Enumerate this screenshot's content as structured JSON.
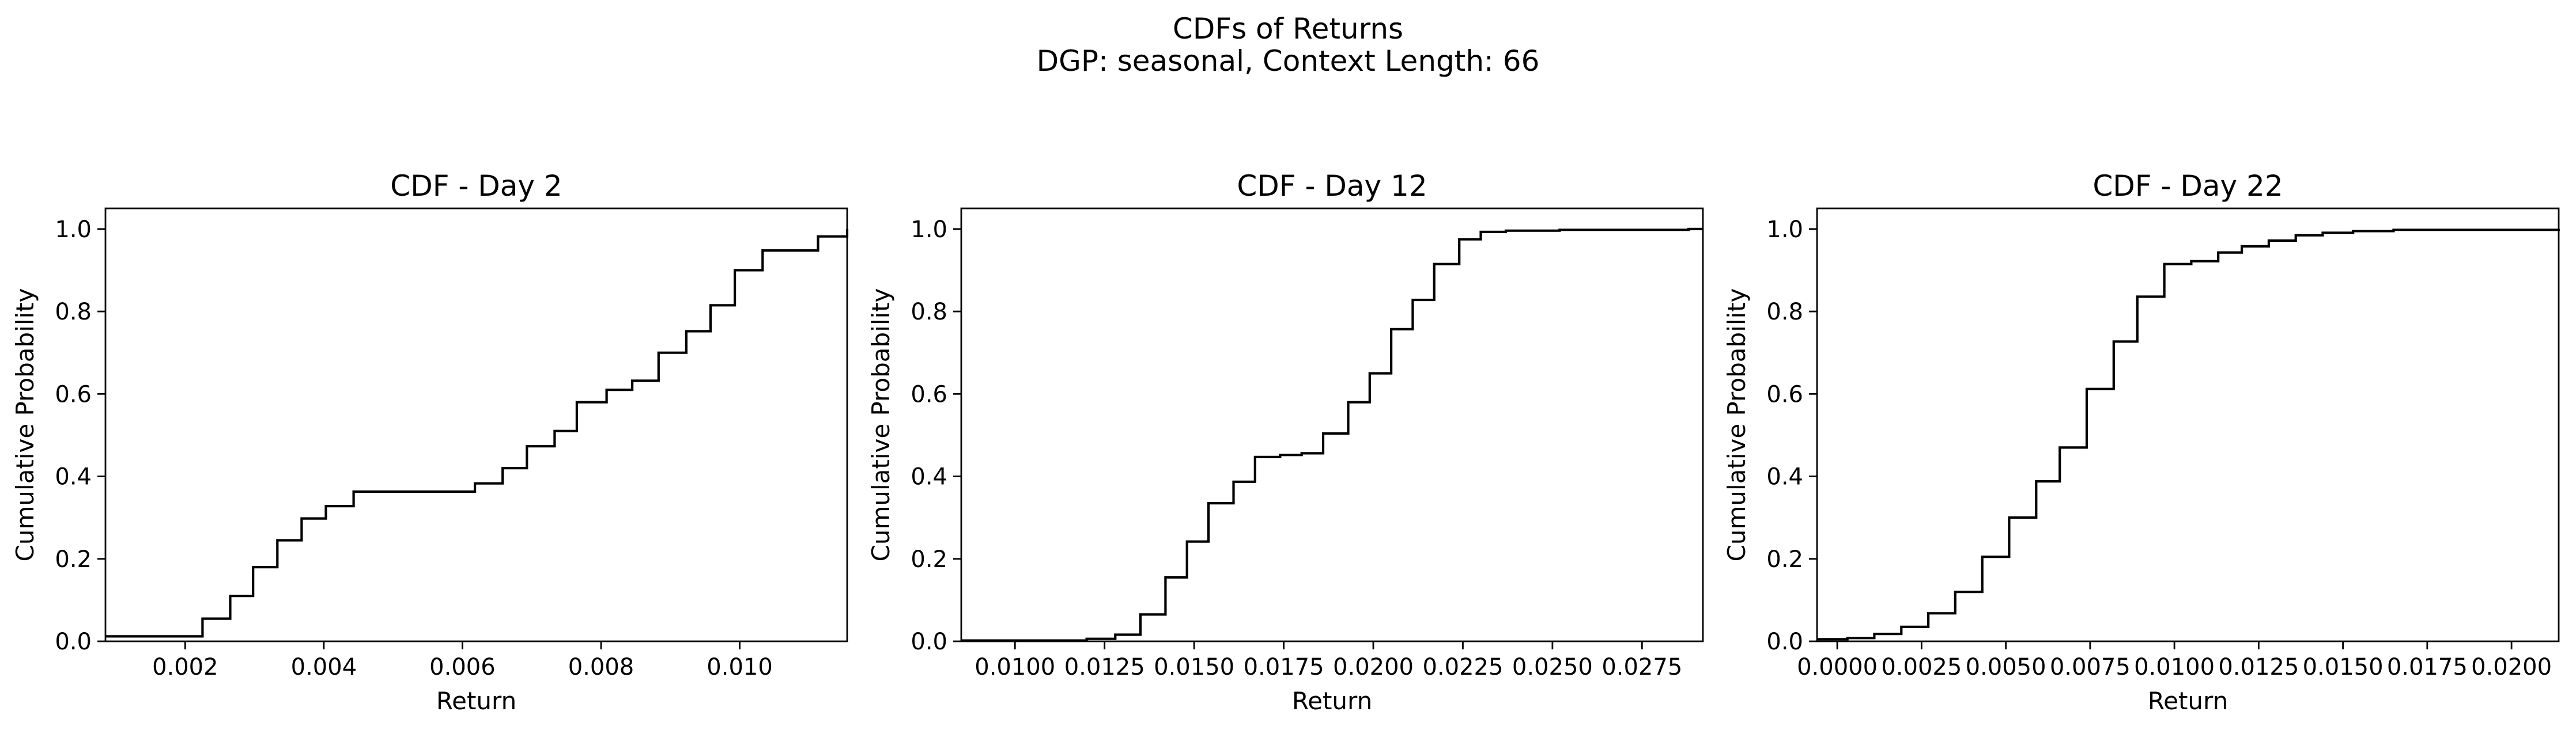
{
  "figure": {
    "title_line1": "CDFs of Returns",
    "title_line2": "DGP: seasonal, Context Length: 66"
  },
  "chart_data": [
    {
      "type": "line",
      "step": true,
      "title": "CDF - Day 2",
      "xlabel": "Return",
      "ylabel": "Cumulative Probability",
      "xlim": [
        0.00085,
        0.01155
      ],
      "ylim": [
        0.0,
        1.05
      ],
      "xticks": [
        0.002,
        0.004,
        0.006,
        0.008,
        0.01
      ],
      "xtick_labels": [
        "0.002",
        "0.004",
        "0.006",
        "0.008",
        "0.010"
      ],
      "yticks": [
        0.0,
        0.2,
        0.4,
        0.6,
        0.8,
        1.0
      ],
      "ytick_labels": [
        "0.0",
        "0.2",
        "0.4",
        "0.6",
        "0.8",
        "1.0"
      ],
      "grid": false,
      "color": "#000000",
      "x": [
        0.00085,
        0.00225,
        0.00265,
        0.00298,
        0.00333,
        0.00368,
        0.00403,
        0.00443,
        0.00618,
        0.00658,
        0.00693,
        0.00733,
        0.00765,
        0.00808,
        0.00845,
        0.00883,
        0.00923,
        0.00958,
        0.00993,
        0.01033,
        0.01113,
        0.01155
      ],
      "y": [
        0.012,
        0.055,
        0.11,
        0.18,
        0.245,
        0.298,
        0.328,
        0.363,
        0.383,
        0.42,
        0.473,
        0.51,
        0.58,
        0.61,
        0.632,
        0.7,
        0.752,
        0.815,
        0.9,
        0.948,
        0.982,
        1.0
      ]
    },
    {
      "type": "line",
      "step": true,
      "title": "CDF - Day 12",
      "xlabel": "Return",
      "ylabel": "Cumulative Probability",
      "xlim": [
        0.0085,
        0.0292
      ],
      "ylim": [
        0.0,
        1.05
      ],
      "xticks": [
        0.01,
        0.0125,
        0.015,
        0.0175,
        0.02,
        0.0225,
        0.025,
        0.0275
      ],
      "xtick_labels": [
        "0.0100",
        "0.0125",
        "0.0150",
        "0.0175",
        "0.0200",
        "0.0225",
        "0.0250",
        "0.0275"
      ],
      "yticks": [
        0.0,
        0.2,
        0.4,
        0.6,
        0.8,
        1.0
      ],
      "ytick_labels": [
        "0.0",
        "0.2",
        "0.4",
        "0.6",
        "0.8",
        "1.0"
      ],
      "grid": false,
      "color": "#000000",
      "x": [
        0.0085,
        0.012,
        0.0128,
        0.0135,
        0.0142,
        0.0148,
        0.0154,
        0.0161,
        0.0167,
        0.0174,
        0.018,
        0.0186,
        0.0193,
        0.0199,
        0.0205,
        0.0211,
        0.0217,
        0.0224,
        0.023,
        0.0237,
        0.0252,
        0.0288,
        0.0292
      ],
      "y": [
        0.002,
        0.006,
        0.016,
        0.065,
        0.155,
        0.242,
        0.335,
        0.387,
        0.447,
        0.452,
        0.456,
        0.504,
        0.58,
        0.65,
        0.757,
        0.828,
        0.915,
        0.975,
        0.993,
        0.996,
        0.998,
        1.0,
        1.0
      ]
    },
    {
      "type": "line",
      "step": true,
      "title": "CDF - Day 22",
      "xlabel": "Return",
      "ylabel": "Cumulative Probability",
      "xlim": [
        -0.0006,
        0.0214
      ],
      "ylim": [
        0.0,
        1.05
      ],
      "xticks": [
        0.0,
        0.0025,
        0.005,
        0.0075,
        0.01,
        0.0125,
        0.015,
        0.0175,
        0.02
      ],
      "xtick_labels": [
        "0.0000",
        "0.0025",
        "0.0050",
        "0.0075",
        "0.0100",
        "0.0125",
        "0.0150",
        "0.0175",
        "0.0200"
      ],
      "yticks": [
        0.0,
        0.2,
        0.4,
        0.6,
        0.8,
        1.0
      ],
      "ytick_labels": [
        "0.0",
        "0.2",
        "0.4",
        "0.6",
        "0.8",
        "1.0"
      ],
      "grid": false,
      "color": "#000000",
      "x": [
        -0.0006,
        0.0003,
        0.0011,
        0.0019,
        0.0027,
        0.0035,
        0.0043,
        0.0051,
        0.0059,
        0.0066,
        0.0074,
        0.0082,
        0.0089,
        0.0097,
        0.0105,
        0.0113,
        0.012,
        0.0128,
        0.0136,
        0.0144,
        0.0153,
        0.0165,
        0.0214
      ],
      "y": [
        0.005,
        0.008,
        0.018,
        0.035,
        0.068,
        0.12,
        0.205,
        0.3,
        0.388,
        0.47,
        0.612,
        0.727,
        0.836,
        0.915,
        0.922,
        0.943,
        0.958,
        0.972,
        0.985,
        0.991,
        0.995,
        0.998,
        1.0
      ]
    }
  ]
}
